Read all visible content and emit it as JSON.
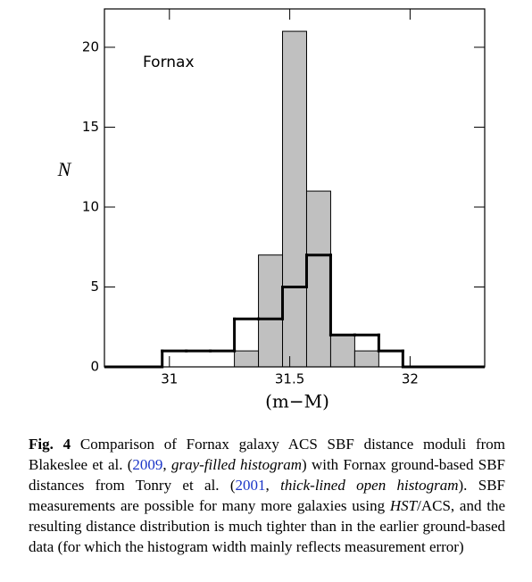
{
  "chart_data": {
    "type": "histogram",
    "annotation": "Fornax",
    "x_label": "(m−M)",
    "y_label": "N",
    "xlim": [
      30.73,
      32.31
    ],
    "ylim": [
      0,
      22.4
    ],
    "xticks": [
      31,
      31.5,
      32
    ],
    "yticks": [
      0,
      5,
      10,
      15,
      20
    ],
    "series": [
      {
        "color": "#c0c0c0",
        "filled": true,
        "bins": [
          31.27,
          31.37,
          31.47,
          31.57,
          31.67,
          31.77,
          31.87
        ],
        "values": [
          1,
          7,
          21,
          11,
          2,
          1
        ]
      },
      {
        "color": "#000000",
        "filled": false,
        "bins": [
          30.97,
          31.07,
          31.17,
          31.27,
          31.37,
          31.47,
          31.57,
          31.67,
          31.77,
          31.87,
          31.97
        ],
        "values": [
          1,
          1,
          1,
          3,
          3,
          5,
          7,
          2,
          2,
          1
        ]
      }
    ]
  },
  "caption": {
    "label": "Fig. 4",
    "parts": [
      " Comparison of Fornax galaxy ACS SBF distance moduli from Blakeslee et al. (",
      "2009",
      ", ",
      "gray-filled histogram",
      ") with Fornax ground-based SBF distances from Tonry et al. (",
      "2001",
      ", ",
      "thick-lined open histogram",
      "). SBF measurements are possible for many more galaxies using ",
      "HST",
      "/ACS, and the resulting distance distribution is much tighter than in the earlier ground-based data (for which the histogram width mainly reflects measurement error)"
    ]
  }
}
